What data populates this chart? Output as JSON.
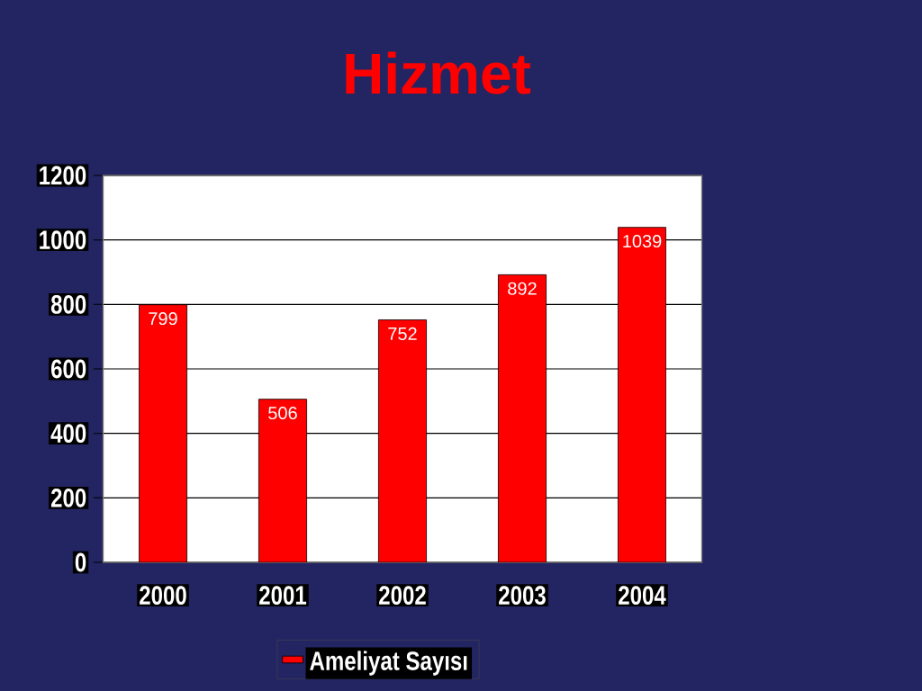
{
  "chart_data": {
    "type": "bar",
    "title": "Hizmet",
    "categories": [
      "2000",
      "2001",
      "2002",
      "2003",
      "2004"
    ],
    "series": [
      {
        "name": "Ameliyat Sayısı",
        "color": "#ff0000",
        "values": [
          799,
          506,
          752,
          892,
          1039
        ]
      }
    ],
    "ylim": [
      0,
      1200
    ],
    "yticks": [
      0,
      200,
      400,
      600,
      800,
      1000,
      1200
    ],
    "grid": "y",
    "data_labels": true,
    "legend": "bottom"
  }
}
